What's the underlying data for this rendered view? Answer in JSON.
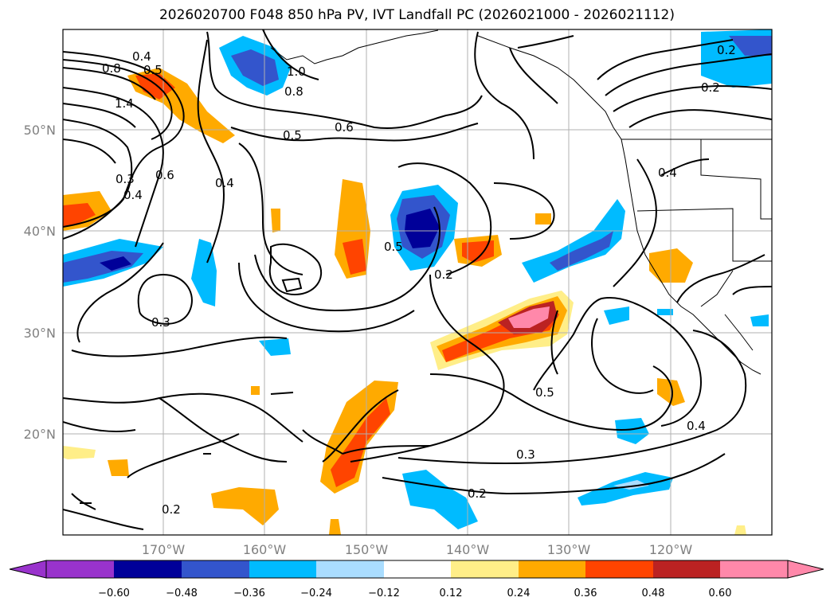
{
  "title": "2026020700 F048 850 hPa PV, IVT Landfall PC (2026021000 - 2026021112)",
  "lat_labels": [
    "50°N",
    "40°N",
    "30°N",
    "20°N"
  ],
  "lon_labels": [
    "170°W",
    "160°W",
    "150°W",
    "140°W",
    "130°W",
    "120°W"
  ],
  "colorbar": {
    "ticks": [
      "−0.60",
      "−0.48",
      "−0.36",
      "−0.24",
      "−0.12",
      "0.12",
      "0.24",
      "0.36",
      "0.48",
      "0.60"
    ],
    "colors": [
      "#9933cc",
      "#000099",
      "#3355cc",
      "#00bbff",
      "#aaddff",
      "#ffffff",
      "#ffee88",
      "#ffaa00",
      "#ff4400",
      "#bb2222",
      "#ff88aa"
    ]
  },
  "contour_labels": [
    "0.4",
    "0.5",
    "0.8",
    "1.4",
    "0.3",
    "0.4",
    "0.6",
    "0.4",
    "0.5",
    "0.6",
    "0.8",
    "1.0",
    "0.3",
    "0.5",
    "0.2",
    "0.2",
    "0.4",
    "0.5",
    "0.4",
    "0.3",
    "0.2",
    "0.2",
    "0.2"
  ],
  "colors": {
    "land_line": "#000000",
    "grid": "#b0b0b0"
  }
}
